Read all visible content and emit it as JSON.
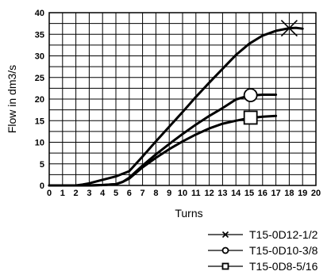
{
  "chart_data": {
    "type": "line",
    "title": "",
    "xlabel": "Turns",
    "ylabel": "Flow in dm3/s",
    "xlim": [
      0,
      20
    ],
    "ylim": [
      0,
      40
    ],
    "x_ticks": [
      0,
      1,
      2,
      3,
      4,
      5,
      6,
      7,
      8,
      9,
      10,
      11,
      12,
      13,
      14,
      15,
      16,
      17,
      18,
      19,
      20
    ],
    "y_ticks": [
      0,
      5,
      10,
      15,
      20,
      25,
      30,
      35,
      40
    ],
    "grid": true,
    "legend_position": "bottom-right",
    "series": [
      {
        "name": "T15-0D12-1/2",
        "marker": "x",
        "marker_at": [
          18,
          36.4
        ],
        "x": [
          0,
          1,
          2,
          2.5,
          3,
          4,
          5,
          6,
          7,
          8,
          9,
          10,
          11,
          12,
          13,
          14,
          15,
          16,
          17,
          18,
          18.5,
          19
        ],
        "y": [
          0,
          0,
          0,
          0.2,
          0.5,
          1.3,
          2.1,
          3.3,
          6.7,
          10.2,
          13.6,
          17.0,
          20.5,
          23.8,
          27.0,
          30.2,
          32.8,
          34.7,
          35.8,
          36.4,
          36.5,
          36.3
        ]
      },
      {
        "name": "T15-0D10-3/8",
        "marker": "o",
        "marker_at": [
          15.1,
          20.9
        ],
        "x": [
          0,
          1,
          2,
          3,
          4,
          5,
          5.5,
          6,
          7,
          8,
          9,
          10,
          11,
          12,
          13,
          14,
          15,
          16,
          17
        ],
        "y": [
          0,
          0,
          0,
          0,
          0.1,
          0.3,
          0.8,
          1.8,
          4.6,
          7.2,
          9.6,
          11.9,
          14.1,
          16.1,
          17.9,
          19.9,
          20.8,
          21.0,
          21.0
        ]
      },
      {
        "name": "T15-0D8-5/16",
        "marker": "square",
        "marker_at": [
          15.1,
          15.7
        ],
        "x": [
          0,
          1,
          2,
          3,
          4,
          5,
          5.5,
          6,
          7,
          8,
          9,
          10,
          11,
          12,
          13,
          14,
          15,
          16,
          17
        ],
        "y": [
          0,
          0,
          0,
          0,
          0.1,
          0.3,
          0.8,
          1.6,
          4.2,
          6.4,
          8.4,
          10.2,
          11.8,
          13.2,
          14.3,
          15.0,
          15.6,
          15.9,
          16.1
        ]
      }
    ]
  }
}
